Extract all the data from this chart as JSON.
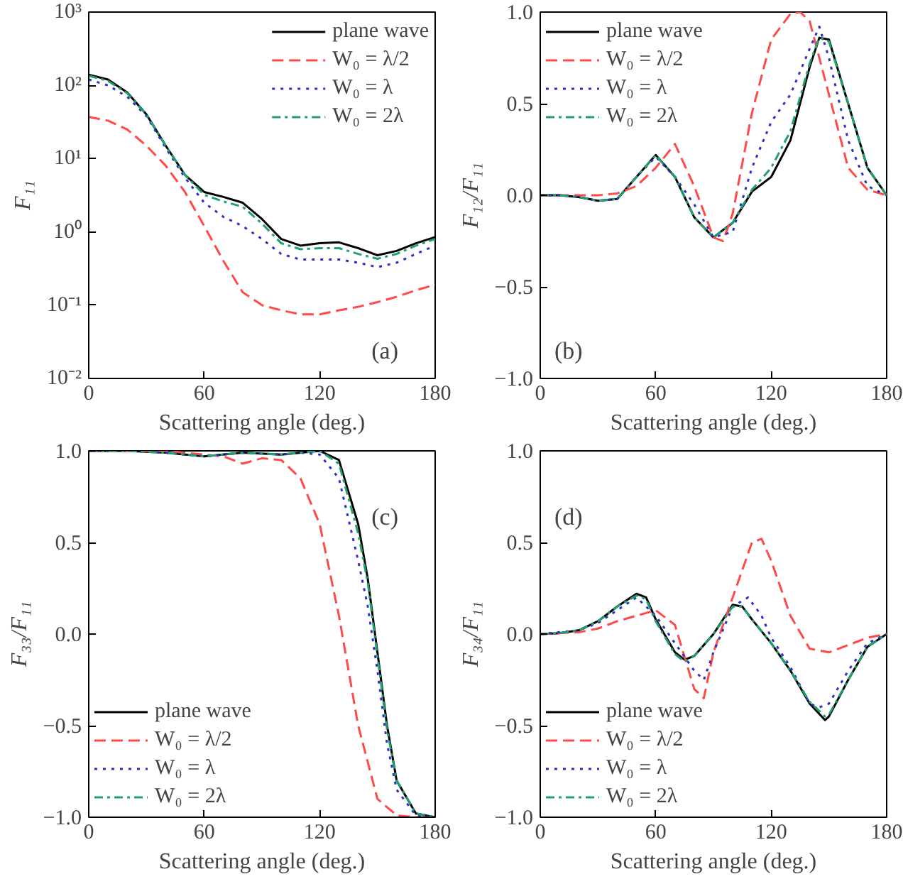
{
  "chart_data": [
    {
      "type": "line",
      "xlabel": "Scattering angle (deg.)",
      "ylabel": "F₁₁",
      "log": "y",
      "xlim": [
        0,
        180
      ],
      "xticks": [
        0,
        60,
        120,
        180
      ],
      "ylim": [
        0.01,
        1000
      ],
      "yticks": [
        {
          "value": 0.01,
          "label": "10⁻²"
        },
        {
          "value": 0.1,
          "label": "10⁻¹"
        },
        {
          "value": 1,
          "label": "10⁰"
        },
        {
          "value": 10,
          "label": "10¹"
        },
        {
          "value": 100,
          "label": "10²"
        },
        {
          "value": 1000,
          "label": "10³"
        }
      ],
      "legend": "top right",
      "grid": false,
      "annotations": [
        "(a)"
      ],
      "x": [
        0,
        10,
        20,
        30,
        40,
        50,
        60,
        70,
        80,
        90,
        100,
        110,
        120,
        130,
        140,
        150,
        160,
        170,
        180
      ],
      "series": [
        {
          "name": "plane wave",
          "color": "#000000",
          "line_style": "solid",
          "values": [
            140,
            120,
            80,
            40,
            15,
            6,
            3.5,
            3.0,
            2.5,
            1.5,
            0.8,
            0.65,
            0.7,
            0.72,
            0.6,
            0.48,
            0.55,
            0.7,
            0.85
          ]
        },
        {
          "name": "W₀ = λ/2",
          "color": "#ff4a4a",
          "line_style": "dashed",
          "values": [
            37,
            33,
            25,
            15,
            8,
            3.5,
            1.2,
            0.4,
            0.15,
            0.1,
            0.085,
            0.075,
            0.075,
            0.085,
            0.095,
            0.11,
            0.13,
            0.16,
            0.19
          ]
        },
        {
          "name": "W₀ = λ",
          "color": "#3030c0",
          "line_style": "dotted",
          "values": [
            120,
            100,
            70,
            38,
            14,
            5.5,
            2.5,
            1.6,
            1.2,
            0.8,
            0.5,
            0.42,
            0.42,
            0.42,
            0.38,
            0.33,
            0.38,
            0.5,
            0.65
          ]
        },
        {
          "name": "W₀ = 2λ",
          "color": "#20a070",
          "line_style": "dashdot",
          "values": [
            135,
            115,
            78,
            40,
            15,
            6,
            3.2,
            2.6,
            2.2,
            1.3,
            0.7,
            0.58,
            0.6,
            0.6,
            0.5,
            0.43,
            0.5,
            0.65,
            0.8
          ]
        }
      ]
    },
    {
      "type": "line",
      "xlabel": "Scattering angle (deg.)",
      "ylabel": "F₁₂/F₁₁",
      "xlim": [
        0,
        180
      ],
      "xticks": [
        0,
        60,
        120,
        180
      ],
      "ylim": [
        -1,
        1
      ],
      "yticks": [
        {
          "value": -1,
          "label": "−1.0"
        },
        {
          "value": -0.5,
          "label": "−0.5"
        },
        {
          "value": 0,
          "label": "0.0"
        },
        {
          "value": 0.5,
          "label": "0.5"
        },
        {
          "value": 1,
          "label": "1.0"
        }
      ],
      "legend": "top left",
      "grid": false,
      "annotations": [
        "(b)"
      ],
      "series": [
        {
          "name": "plane wave",
          "color": "#000000",
          "line_style": "solid",
          "x": [
            0,
            10,
            20,
            30,
            40,
            50,
            60,
            70,
            80,
            90,
            100,
            110,
            120,
            130,
            140,
            145,
            150,
            160,
            170,
            180
          ],
          "values": [
            0,
            0,
            -0.01,
            -0.03,
            -0.02,
            0.1,
            0.22,
            0.1,
            -0.12,
            -0.23,
            -0.15,
            0.02,
            0.1,
            0.3,
            0.7,
            0.86,
            0.85,
            0.5,
            0.15,
            0
          ]
        },
        {
          "name": "W₀ = λ/2",
          "color": "#ff4a4a",
          "line_style": "dashed",
          "x": [
            0,
            10,
            20,
            30,
            40,
            50,
            60,
            70,
            80,
            90,
            95,
            100,
            110,
            120,
            130,
            135,
            140,
            150,
            160,
            170,
            180
          ],
          "values": [
            0,
            0,
            0,
            0,
            0.01,
            0.05,
            0.15,
            0.28,
            0.05,
            -0.23,
            -0.25,
            -0.1,
            0.45,
            0.85,
            0.99,
            1.0,
            0.95,
            0.55,
            0.15,
            0.03,
            0
          ]
        },
        {
          "name": "W₀ = λ",
          "color": "#3030c0",
          "line_style": "dotted",
          "x": [
            0,
            10,
            20,
            30,
            40,
            50,
            60,
            70,
            80,
            90,
            100,
            110,
            120,
            130,
            140,
            145,
            150,
            160,
            170,
            180
          ],
          "values": [
            0,
            0,
            -0.01,
            -0.03,
            -0.02,
            0.1,
            0.21,
            0.1,
            -0.05,
            -0.23,
            -0.2,
            0.15,
            0.4,
            0.55,
            0.8,
            0.92,
            0.75,
            0.3,
            0.05,
            0
          ]
        },
        {
          "name": "W₀ = 2λ",
          "color": "#20a070",
          "line_style": "dashdot",
          "x": [
            0,
            10,
            20,
            30,
            40,
            50,
            60,
            70,
            80,
            90,
            100,
            110,
            120,
            130,
            140,
            145,
            150,
            160,
            170,
            180
          ],
          "values": [
            0,
            0,
            -0.01,
            -0.03,
            -0.02,
            0.1,
            0.22,
            0.1,
            -0.12,
            -0.23,
            -0.15,
            0.03,
            0.15,
            0.35,
            0.72,
            0.86,
            0.84,
            0.5,
            0.15,
            0
          ]
        }
      ]
    },
    {
      "type": "line",
      "xlabel": "Scattering angle (deg.)",
      "ylabel": "F₃₃/F₁₁",
      "xlim": [
        0,
        180
      ],
      "xticks": [
        0,
        60,
        120,
        180
      ],
      "ylim": [
        -1,
        1
      ],
      "yticks": [
        {
          "value": -1,
          "label": "−1.0"
        },
        {
          "value": -0.5,
          "label": "−0.5"
        },
        {
          "value": 0,
          "label": "0.0"
        },
        {
          "value": 0.5,
          "label": "0.5"
        },
        {
          "value": 1,
          "label": "1.0"
        }
      ],
      "legend": "bottom left",
      "grid": false,
      "annotations": [
        "(c)"
      ],
      "series": [
        {
          "name": "plane wave",
          "color": "#000000",
          "line_style": "solid",
          "x": [
            0,
            20,
            40,
            60,
            80,
            100,
            120,
            130,
            140,
            145,
            150,
            155,
            160,
            170,
            180
          ],
          "values": [
            1,
            1,
            0.99,
            0.97,
            0.99,
            0.98,
            1.0,
            0.95,
            0.6,
            0.3,
            -0.1,
            -0.5,
            -0.8,
            -0.98,
            -1
          ]
        },
        {
          "name": "W₀ = λ/2",
          "color": "#ff4a4a",
          "line_style": "dashed",
          "x": [
            0,
            40,
            60,
            70,
            80,
            90,
            100,
            110,
            120,
            130,
            140,
            150,
            160,
            170,
            180
          ],
          "values": [
            1,
            1,
            0.98,
            0.97,
            0.93,
            0.96,
            0.95,
            0.85,
            0.6,
            0.1,
            -0.5,
            -0.9,
            -0.99,
            -1,
            -1
          ]
        },
        {
          "name": "W₀ = λ",
          "color": "#3030c0",
          "line_style": "dotted",
          "x": [
            0,
            20,
            40,
            60,
            80,
            100,
            110,
            120,
            130,
            140,
            145,
            150,
            155,
            160,
            170,
            180
          ],
          "values": [
            1,
            1,
            0.99,
            0.97,
            0.99,
            0.98,
            0.99,
            0.98,
            0.85,
            0.4,
            0.15,
            -0.2,
            -0.6,
            -0.85,
            -0.99,
            -1
          ]
        },
        {
          "name": "W₀ = 2λ",
          "color": "#20a070",
          "line_style": "dashdot",
          "x": [
            0,
            20,
            40,
            60,
            80,
            100,
            120,
            130,
            140,
            145,
            150,
            155,
            160,
            170,
            180
          ],
          "values": [
            1,
            1,
            0.99,
            0.97,
            0.99,
            0.98,
            1.0,
            0.93,
            0.55,
            0.28,
            -0.12,
            -0.52,
            -0.8,
            -0.98,
            -1
          ]
        }
      ]
    },
    {
      "type": "line",
      "xlabel": "Scattering angle (deg.)",
      "ylabel": "F₃₄/F₁₁",
      "xlim": [
        0,
        180
      ],
      "xticks": [
        0,
        60,
        120,
        180
      ],
      "ylim": [
        -1,
        1
      ],
      "yticks": [
        {
          "value": -1,
          "label": "−1.0"
        },
        {
          "value": -0.5,
          "label": "−0.5"
        },
        {
          "value": 0,
          "label": "0.0"
        },
        {
          "value": 0.5,
          "label": "0.5"
        },
        {
          "value": 1,
          "label": "1.0"
        }
      ],
      "legend": "bottom left",
      "grid": false,
      "annotations": [
        "(d)"
      ],
      "series": [
        {
          "name": "plane wave",
          "color": "#000000",
          "line_style": "solid",
          "x": [
            0,
            10,
            20,
            30,
            40,
            50,
            55,
            60,
            70,
            75,
            80,
            90,
            100,
            105,
            110,
            120,
            130,
            140,
            148,
            150,
            160,
            170,
            180
          ],
          "values": [
            0,
            0.005,
            0.02,
            0.07,
            0.15,
            0.22,
            0.2,
            0.08,
            -0.1,
            -0.14,
            -0.12,
            0,
            0.16,
            0.15,
            0.08,
            -0.05,
            -0.2,
            -0.38,
            -0.47,
            -0.45,
            -0.25,
            -0.07,
            0
          ]
        },
        {
          "name": "W₀ = λ/2",
          "color": "#ff4a4a",
          "line_style": "dashed",
          "x": [
            0,
            20,
            30,
            40,
            50,
            60,
            70,
            80,
            85,
            90,
            100,
            110,
            115,
            120,
            130,
            140,
            150,
            160,
            170,
            180
          ],
          "values": [
            0,
            0.01,
            0.03,
            0.07,
            0.1,
            0.13,
            0.05,
            -0.3,
            -0.35,
            -0.1,
            0.2,
            0.5,
            0.52,
            0.4,
            0.1,
            -0.08,
            -0.1,
            -0.06,
            -0.02,
            0
          ]
        },
        {
          "name": "W₀ = λ",
          "color": "#3030c0",
          "line_style": "dotted",
          "x": [
            0,
            20,
            30,
            40,
            50,
            60,
            70,
            80,
            85,
            90,
            100,
            108,
            115,
            120,
            130,
            140,
            145,
            150,
            160,
            170,
            180
          ],
          "values": [
            0,
            0.02,
            0.06,
            0.13,
            0.2,
            0.1,
            -0.05,
            -0.2,
            -0.25,
            -0.1,
            0.15,
            0.2,
            0.1,
            -0.02,
            -0.18,
            -0.38,
            -0.4,
            -0.38,
            -0.2,
            -0.05,
            0
          ]
        },
        {
          "name": "W₀ = 2λ",
          "color": "#20a070",
          "line_style": "dashdot",
          "x": [
            0,
            10,
            20,
            30,
            40,
            50,
            55,
            60,
            70,
            75,
            80,
            90,
            100,
            105,
            110,
            120,
            130,
            140,
            148,
            150,
            160,
            170,
            180
          ],
          "values": [
            0,
            0.005,
            0.02,
            0.07,
            0.15,
            0.21,
            0.19,
            0.07,
            -0.11,
            -0.15,
            -0.12,
            0,
            0.15,
            0.15,
            0.08,
            -0.05,
            -0.2,
            -0.37,
            -0.45,
            -0.44,
            -0.25,
            -0.07,
            0
          ]
        }
      ]
    }
  ]
}
